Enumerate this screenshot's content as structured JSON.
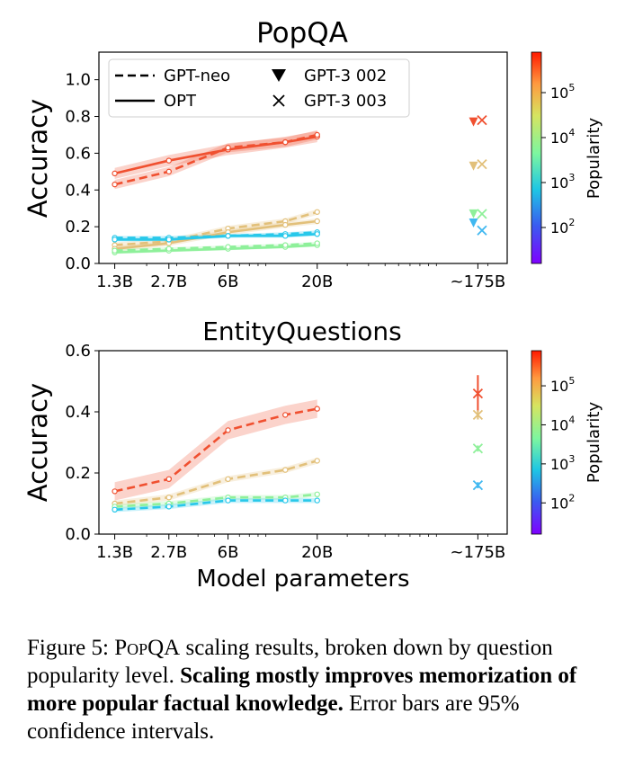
{
  "caption": {
    "label": "Figure 5:",
    "dataset": "PopQA",
    "text1": "scaling results, broken down by question popularity level.",
    "bold": "Scaling mostly improves memorization of more popular factual knowledge.",
    "text2": "Error bars are 95% confidence intervals."
  },
  "legend": {
    "gpt_neo": "GPT-neo",
    "opt": "OPT",
    "gpt3_002": "GPT-3 002",
    "gpt3_003": "GPT-3 003"
  },
  "colorbar": {
    "title": "Popularity",
    "ticks": [
      {
        "base": "10",
        "exp": "2"
      },
      {
        "base": "10",
        "exp": "3"
      },
      {
        "base": "10",
        "exp": "4"
      },
      {
        "base": "10",
        "exp": "5"
      }
    ]
  },
  "chart_data": [
    {
      "type": "line",
      "title": "PopQA",
      "xlabel": "",
      "ylabel": "Accuracy",
      "xscale": "log",
      "x_ticks": [
        "1.3B",
        "2.7B",
        "6B",
        "20B",
        "~175B"
      ],
      "x_values": [
        1.3,
        2.7,
        6,
        20,
        175
      ],
      "y_ticks": [
        "0.0",
        "0.2",
        "0.4",
        "0.6",
        "0.8",
        "1.0"
      ],
      "ylim": [
        0,
        1.15
      ],
      "colors": {
        "high": "#f05030",
        "midhigh": "#e2c07a",
        "midlow": "#8ef09a",
        "low": "#28c8ea",
        "low2": "#40b8f0"
      },
      "series": [
        {
          "name": "OPT (high popularity)",
          "model": "OPT",
          "style": "solid",
          "color": "high",
          "x": [
            1.3,
            2.7,
            6,
            13,
            20
          ],
          "values": [
            0.49,
            0.56,
            0.62,
            0.66,
            0.69
          ],
          "ci": 0.03
        },
        {
          "name": "GPT-neo (high popularity)",
          "model": "GPT-neo",
          "style": "dashed",
          "color": "high",
          "x": [
            1.3,
            2.7,
            6,
            13,
            20
          ],
          "values": [
            0.43,
            0.5,
            0.63,
            0.66,
            0.7
          ],
          "ci": 0.025
        },
        {
          "name": "GPT-neo (mid-high popularity)",
          "model": "GPT-neo",
          "style": "dashed",
          "color": "midhigh",
          "x": [
            1.3,
            2.7,
            6,
            13,
            20
          ],
          "values": [
            0.1,
            0.12,
            0.19,
            0.23,
            0.28
          ],
          "ci": 0.015
        },
        {
          "name": "OPT (mid-high popularity)",
          "model": "OPT",
          "style": "solid",
          "color": "midhigh",
          "x": [
            1.3,
            2.7,
            6,
            13,
            20
          ],
          "values": [
            0.08,
            0.11,
            0.17,
            0.21,
            0.23
          ],
          "ci": 0.015
        },
        {
          "name": "GPT-neo (low popularity)",
          "model": "GPT-neo",
          "style": "dashed",
          "color": "low",
          "x": [
            1.3,
            2.7,
            6,
            13,
            20
          ],
          "values": [
            0.14,
            0.14,
            0.15,
            0.16,
            0.17
          ],
          "ci": 0.01
        },
        {
          "name": "OPT (low popularity)",
          "model": "OPT",
          "style": "solid",
          "color": "low",
          "x": [
            1.3,
            2.7,
            6,
            13,
            20
          ],
          "values": [
            0.13,
            0.13,
            0.15,
            0.15,
            0.16
          ],
          "ci": 0.01
        },
        {
          "name": "OPT (mid-low popularity)",
          "model": "OPT",
          "style": "solid",
          "color": "midlow",
          "x": [
            1.3,
            2.7,
            6,
            13,
            20
          ],
          "values": [
            0.06,
            0.07,
            0.08,
            0.09,
            0.1
          ],
          "ci": 0.008
        },
        {
          "name": "GPT-neo (mid-low popularity)",
          "model": "GPT-neo",
          "style": "dashed",
          "color": "midlow",
          "x": [
            1.3,
            2.7,
            6,
            13,
            20
          ],
          "values": [
            0.07,
            0.08,
            0.09,
            0.1,
            0.11
          ],
          "ci": 0.008
        }
      ],
      "points": [
        {
          "model": "GPT-3 002",
          "marker": "triangle",
          "color": "high",
          "x": 165,
          "value": 0.77
        },
        {
          "model": "GPT-3 003",
          "marker": "x",
          "color": "high",
          "x": 185,
          "value": 0.78
        },
        {
          "model": "GPT-3 002",
          "marker": "triangle",
          "color": "midhigh",
          "x": 165,
          "value": 0.53
        },
        {
          "model": "GPT-3 003",
          "marker": "x",
          "color": "midhigh",
          "x": 185,
          "value": 0.54
        },
        {
          "model": "GPT-3 002",
          "marker": "triangle",
          "color": "midlow",
          "x": 165,
          "value": 0.27
        },
        {
          "model": "GPT-3 003",
          "marker": "x",
          "color": "midlow",
          "x": 185,
          "value": 0.27
        },
        {
          "model": "GPT-3 002",
          "marker": "triangle",
          "color": "low2",
          "x": 165,
          "value": 0.22
        },
        {
          "model": "GPT-3 003",
          "marker": "x",
          "color": "low2",
          "x": 185,
          "value": 0.18
        }
      ]
    },
    {
      "type": "line",
      "title": "EntityQuestions",
      "xlabel": "Model parameters",
      "ylabel": "Accuracy",
      "xscale": "log",
      "x_ticks": [
        "1.3B",
        "2.7B",
        "6B",
        "20B",
        "~175B"
      ],
      "x_values": [
        1.3,
        2.7,
        6,
        20,
        175
      ],
      "y_ticks": [
        "0.0",
        "0.2",
        "0.4",
        "0.6"
      ],
      "ylim": [
        0,
        0.6
      ],
      "colors": {
        "high": "#f05030",
        "midhigh": "#e2c07a",
        "midlow": "#8ef09a",
        "low": "#28c8ea",
        "low2": "#40b8f0"
      },
      "series": [
        {
          "name": "GPT-neo (high popularity)",
          "model": "GPT-neo",
          "style": "dashed",
          "color": "high",
          "x": [
            1.3,
            2.7,
            6,
            13,
            20
          ],
          "values": [
            0.14,
            0.18,
            0.34,
            0.39,
            0.41
          ],
          "ci": 0.03
        },
        {
          "name": "GPT-neo (mid-high popularity)",
          "model": "GPT-neo",
          "style": "dashed",
          "color": "midhigh",
          "x": [
            1.3,
            2.7,
            6,
            13,
            20
          ],
          "values": [
            0.1,
            0.12,
            0.18,
            0.21,
            0.24
          ],
          "ci": 0.01
        },
        {
          "name": "GPT-neo (mid-low popularity)",
          "model": "GPT-neo",
          "style": "dashed",
          "color": "midlow",
          "x": [
            1.3,
            2.7,
            6,
            13,
            20
          ],
          "values": [
            0.09,
            0.1,
            0.12,
            0.12,
            0.13
          ],
          "ci": 0.008
        },
        {
          "name": "GPT-neo (low popularity)",
          "model": "GPT-neo",
          "style": "dashed",
          "color": "low",
          "x": [
            1.3,
            2.7,
            6,
            13,
            20
          ],
          "values": [
            0.08,
            0.09,
            0.11,
            0.11,
            0.11
          ],
          "ci": 0.008
        }
      ],
      "points": [
        {
          "model": "GPT-3 003",
          "marker": "x",
          "color": "high",
          "x": 175,
          "value": 0.46,
          "err": 0.06
        },
        {
          "model": "GPT-3 003",
          "marker": "x",
          "color": "midhigh",
          "x": 175,
          "value": 0.39,
          "err": 0.015
        },
        {
          "model": "GPT-3 003",
          "marker": "x",
          "color": "midlow",
          "x": 175,
          "value": 0.28,
          "err": 0.01
        },
        {
          "model": "GPT-3 003",
          "marker": "x",
          "color": "low2",
          "x": 175,
          "value": 0.16,
          "err": 0.01
        }
      ]
    }
  ]
}
